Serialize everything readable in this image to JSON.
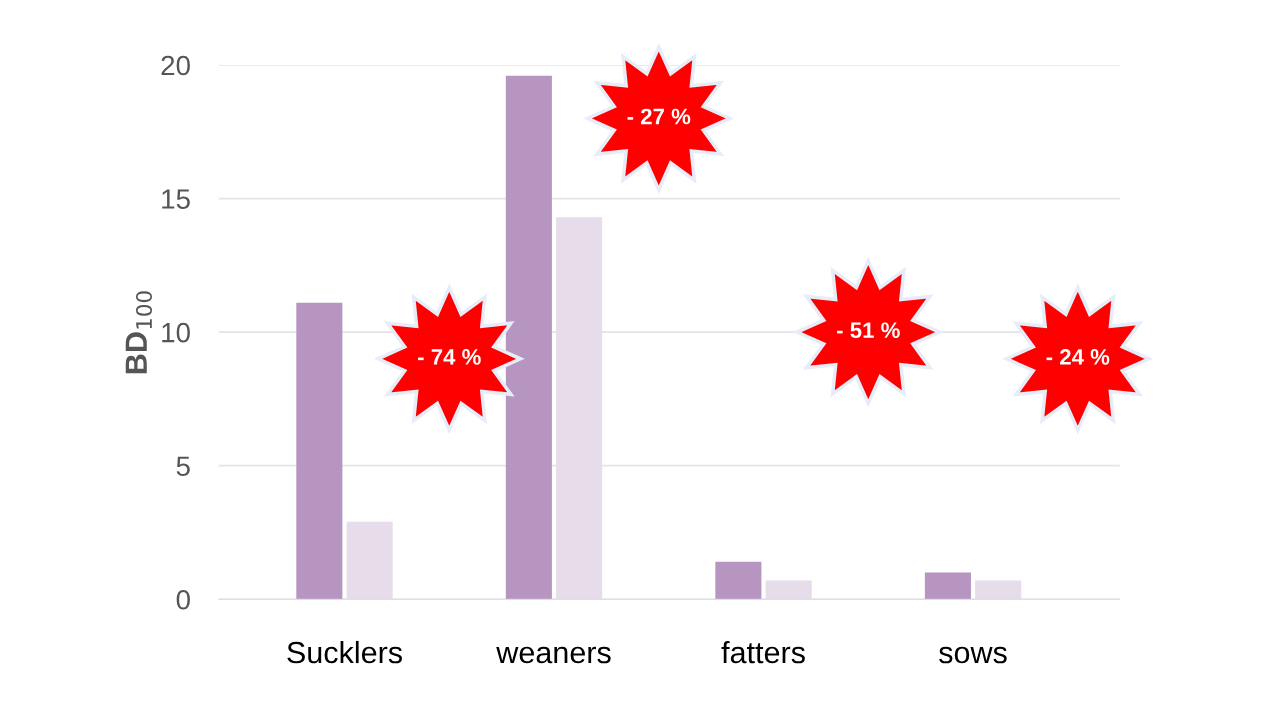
{
  "chart_data": {
    "type": "bar",
    "ylabel": "BD$_{100}$",
    "categories": [
      "Sucklers",
      "weaners",
      "fatters",
      "sows"
    ],
    "series": [
      {
        "color": "#b695c0",
        "values": [
          11.1,
          19.6,
          1.4,
          1.0
        ]
      },
      {
        "color": "#e6dcea",
        "values": [
          2.9,
          14.3,
          0.7,
          0.7
        ]
      }
    ],
    "ylim": [
      0,
      20
    ],
    "yticks": [
      0,
      5,
      10,
      15,
      20
    ],
    "grid": "y",
    "legend": false,
    "annotations": [
      "- 74 %",
      "- 27 %",
      "- 51 %",
      "- 24 %"
    ]
  }
}
